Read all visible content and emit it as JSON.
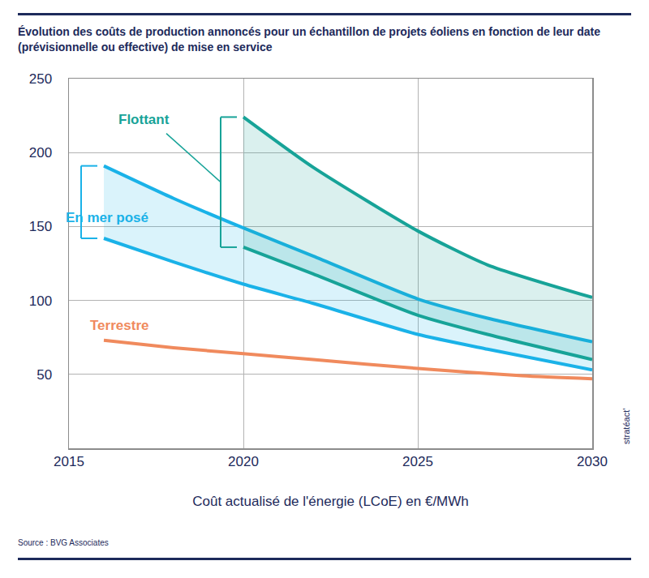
{
  "chart_data": {
    "type": "line",
    "title": "Évolution des coûts de production annoncés pour un échantillon de projets éoliens en fonction de leur date (prévisionnelle ou effective) de mise en service",
    "x_label": "Coût actualisé de l'énergie (LCoE) en €/MWh",
    "source": "Source : BVG Associates",
    "credit": "stratéact'",
    "xlim": [
      2015,
      2030
    ],
    "xticks": [
      2015,
      2020,
      2025,
      2030
    ],
    "ylim": [
      0,
      250
    ],
    "yticks": [
      50,
      100,
      150,
      200,
      250
    ],
    "grid": true,
    "series": [
      {
        "name": "Flottant",
        "type": "band",
        "color": "#17a398",
        "x": [
          2020,
          2022,
          2025,
          2027,
          2030
        ],
        "low": [
          136,
          118,
          90,
          77,
          60
        ],
        "high": [
          224,
          190,
          147,
          124,
          102
        ]
      },
      {
        "name": "En mer posé",
        "type": "band",
        "color": "#1ab2e8",
        "x": [
          2016,
          2018,
          2020,
          2022,
          2025,
          2027,
          2030
        ],
        "low": [
          142,
          126,
          111,
          98,
          77,
          67,
          53
        ],
        "high": [
          191,
          169,
          149,
          130,
          101,
          88,
          72
        ]
      },
      {
        "name": "Terrestre",
        "type": "line",
        "color": "#f08a5d",
        "x": [
          2016,
          2018,
          2020,
          2022,
          2025,
          2028,
          2030
        ],
        "values": [
          73,
          68,
          64,
          60,
          54,
          49,
          47
        ]
      }
    ]
  }
}
